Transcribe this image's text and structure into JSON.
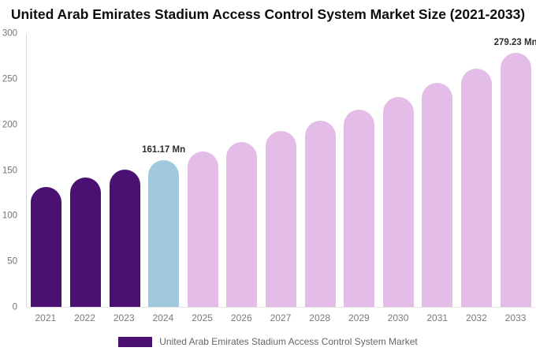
{
  "chart_data": {
    "type": "bar",
    "title": "United Arab Emirates Stadium Access Control System Market Size (2021-2033)",
    "unit": "Mn",
    "categories": [
      "2021",
      "2022",
      "2023",
      "2024",
      "2025",
      "2026",
      "2027",
      "2028",
      "2029",
      "2030",
      "2031",
      "2032",
      "2033"
    ],
    "values": [
      132,
      142,
      151,
      161.17,
      171,
      181,
      193,
      205,
      217,
      231,
      246,
      262,
      279.23
    ],
    "bar_colors": [
      "#4A1173",
      "#4A1173",
      "#4A1173",
      "#A0C9DD",
      "#E4BCE8",
      "#E4BCE8",
      "#E4BCE8",
      "#E4BCE8",
      "#E4BCE8",
      "#E4BCE8",
      "#E4BCE8",
      "#E4BCE8",
      "#E4BCE8"
    ],
    "annotations": [
      {
        "category": "2024",
        "text": "161.17 Mn"
      },
      {
        "category": "2033",
        "text": "279.23 Mn"
      }
    ],
    "xlabel": "",
    "ylabel": "",
    "ylim": [
      0,
      300
    ],
    "yticks": [
      0,
      50,
      100,
      150,
      200,
      250,
      300
    ],
    "grid": false,
    "legend_position": "bottom"
  },
  "legend": {
    "label": "United Arab Emirates Stadium Access Control System Market",
    "swatch_color": "#4A1173"
  },
  "colors": {
    "past_bars": "#4A1173",
    "highlight_bar": "#A0C9DD",
    "forecast_bars": "#E4BCE8",
    "title_text": "#0d0d0d",
    "axis_text": "#757575",
    "annotation_text": "#2d2d2d",
    "axis_line": "#d9d9d9"
  }
}
